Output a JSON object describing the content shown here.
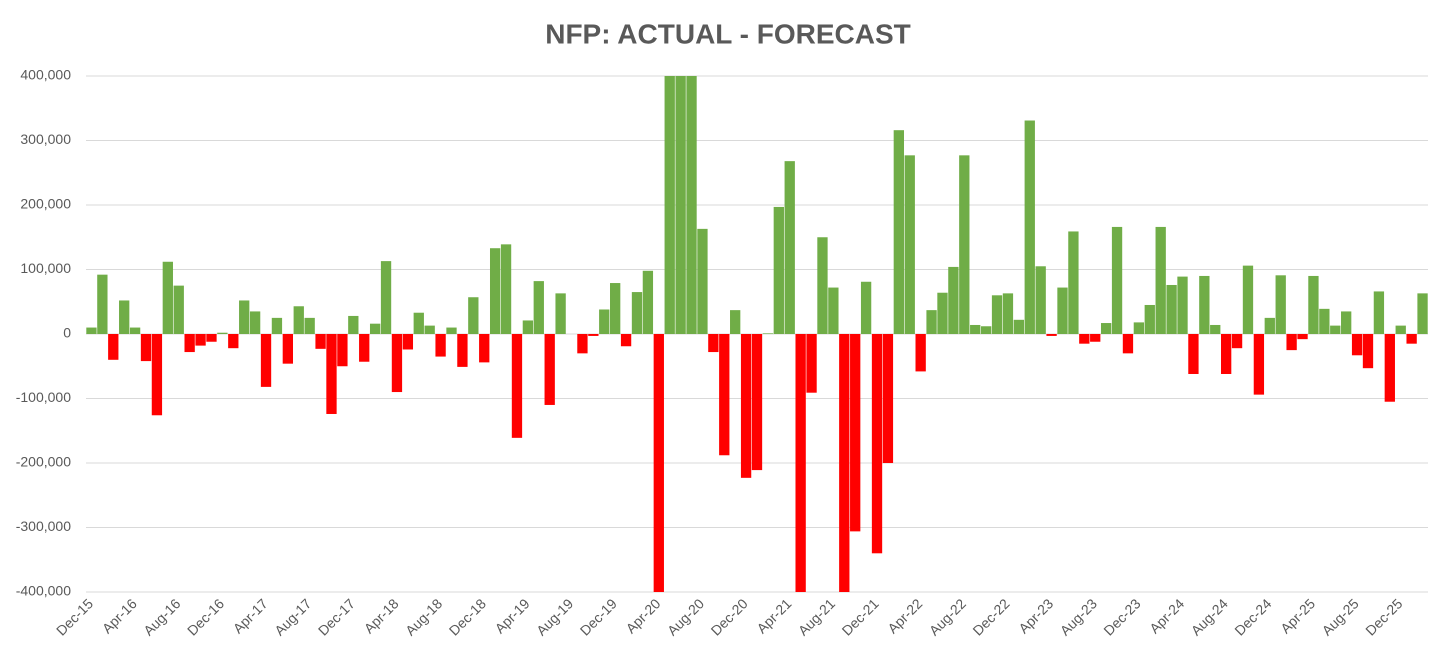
{
  "chart_data": {
    "type": "bar",
    "title": "NFP: ACTUAL - FORECAST",
    "categories": [
      "Dec-15",
      null,
      null,
      null,
      "Apr-16",
      null,
      null,
      null,
      "Aug-16",
      null,
      null,
      null,
      "Dec-16",
      null,
      null,
      null,
      "Apr-17",
      null,
      null,
      null,
      "Aug-17",
      null,
      null,
      null,
      "Dec-17",
      null,
      null,
      null,
      "Apr-18",
      null,
      null,
      null,
      "Aug-18",
      null,
      null,
      null,
      "Dec-18",
      null,
      null,
      null,
      "Apr-19",
      null,
      null,
      null,
      "Aug-19",
      null,
      null,
      null,
      "Dec-19",
      null,
      null,
      null,
      "Apr-20",
      null,
      null,
      null,
      "Aug-20",
      null,
      null,
      null,
      "Dec-20",
      null,
      null,
      null,
      "Apr-21",
      null,
      null,
      null,
      "Aug-21",
      null,
      null,
      null,
      "Dec-21",
      null,
      null,
      null,
      "Apr-22",
      null,
      null,
      null,
      "Aug-22",
      null,
      null,
      null,
      "Dec-22",
      null,
      null,
      null,
      "Apr-23",
      null,
      null,
      null,
      "Aug-23",
      null,
      null,
      null,
      "Dec-23",
      null,
      null,
      null,
      "Apr-24",
      null,
      null,
      null,
      "Aug-24",
      null,
      null,
      null,
      "Dec-24",
      null,
      null,
      null,
      "Apr-25",
      null,
      null,
      null,
      "Aug-25",
      null,
      null,
      null,
      "Dec-25",
      null,
      null
    ],
    "values": [
      10000,
      92000,
      -40000,
      52000,
      10000,
      -42000,
      -126000,
      112000,
      75000,
      -28000,
      -18000,
      -12000,
      2000,
      -22000,
      52000,
      35000,
      -82000,
      25000,
      -46000,
      43000,
      25000,
      -23000,
      -124000,
      -50000,
      28000,
      -43000,
      16000,
      113000,
      -90000,
      -24000,
      33000,
      13000,
      -35000,
      10000,
      -51000,
      57000,
      -44000,
      133000,
      139000,
      -161000,
      21000,
      82000,
      -110000,
      63000,
      0,
      -30000,
      -3000,
      38000,
      79000,
      -19000,
      65000,
      98000,
      -400000,
      400000,
      400000,
      400000,
      163000,
      -28000,
      -188000,
      37000,
      -223000,
      -211000,
      1000,
      197000,
      268000,
      -400000,
      -91000,
      150000,
      72000,
      -400000,
      -306000,
      81000,
      -340000,
      -200000,
      316000,
      277000,
      -58000,
      37000,
      64000,
      104000,
      277000,
      14000,
      12000,
      60000,
      63000,
      22000,
      331000,
      105000,
      -3000,
      72000,
      159000,
      -15000,
      -12000,
      17000,
      166000,
      -30000,
      18000,
      45000,
      166000,
      76000,
      89000,
      -62000,
      90000,
      14000,
      -62000,
      -22000,
      106000,
      -94000,
      25000,
      91000,
      -25000,
      -8000,
      90000,
      39000,
      13000,
      35000,
      -33000,
      -53000,
      66000,
      -105000,
      13000,
      -15000,
      63000
    ],
    "positive_color": "#70ad47",
    "negative_color": "#ff0000",
    "ylim": [
      -400000,
      400000
    ],
    "yticks": [
      {
        "value": -400000,
        "label": "-400,000"
      },
      {
        "value": -300000,
        "label": "-300,000"
      },
      {
        "value": -200000,
        "label": "-200,000"
      },
      {
        "value": -100000,
        "label": "-100,000"
      },
      0,
      {
        "value": 100000,
        "label": "100,000"
      },
      {
        "value": 200000,
        "label": "200,000"
      },
      {
        "value": 300000,
        "label": "300,000"
      },
      {
        "value": 400000,
        "label": "400,000"
      }
    ],
    "grid": true
  }
}
